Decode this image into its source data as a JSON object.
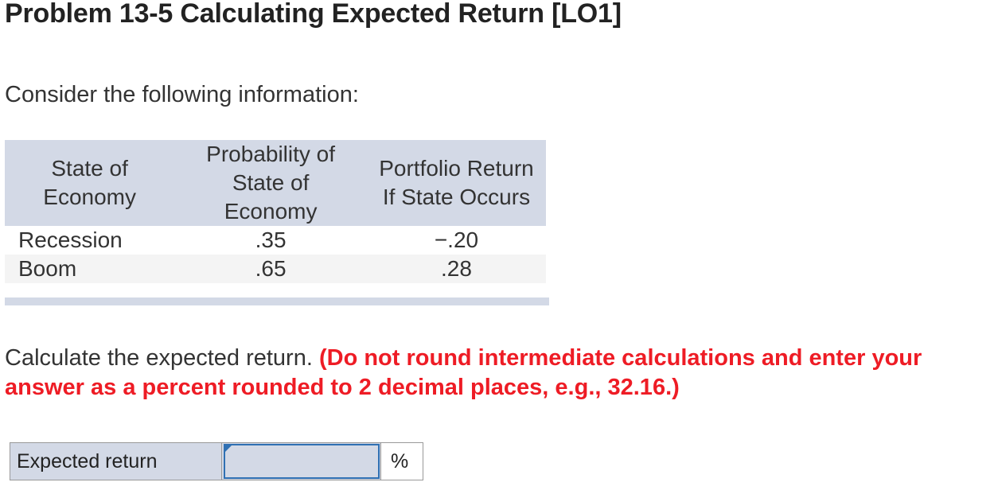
{
  "title": "Problem 13-5 Calculating Expected Return [LO1]",
  "intro": "Consider the following information:",
  "table": {
    "headers": {
      "state": [
        "State of",
        "Economy"
      ],
      "probability": [
        "Probability of",
        "State of",
        "Economy"
      ],
      "return": [
        "Portfolio Return",
        "If State Occurs"
      ]
    },
    "rows": [
      {
        "state": "Recession",
        "probability": ".35",
        "return": "−.20"
      },
      {
        "state": "Boom",
        "probability": ".65",
        "return": ".28"
      }
    ]
  },
  "question": {
    "text": "Calculate the expected return. ",
    "instruction": "(Do not round intermediate calculations and enter your answer as a percent rounded to 2 decimal places, e.g., 32.16.)"
  },
  "answer": {
    "label": "Expected return",
    "value": "",
    "unit": "%"
  },
  "colors": {
    "header_bg": "#d3d9e6",
    "instruction_red": "#ee1c25",
    "input_border": "#2f70b3"
  }
}
